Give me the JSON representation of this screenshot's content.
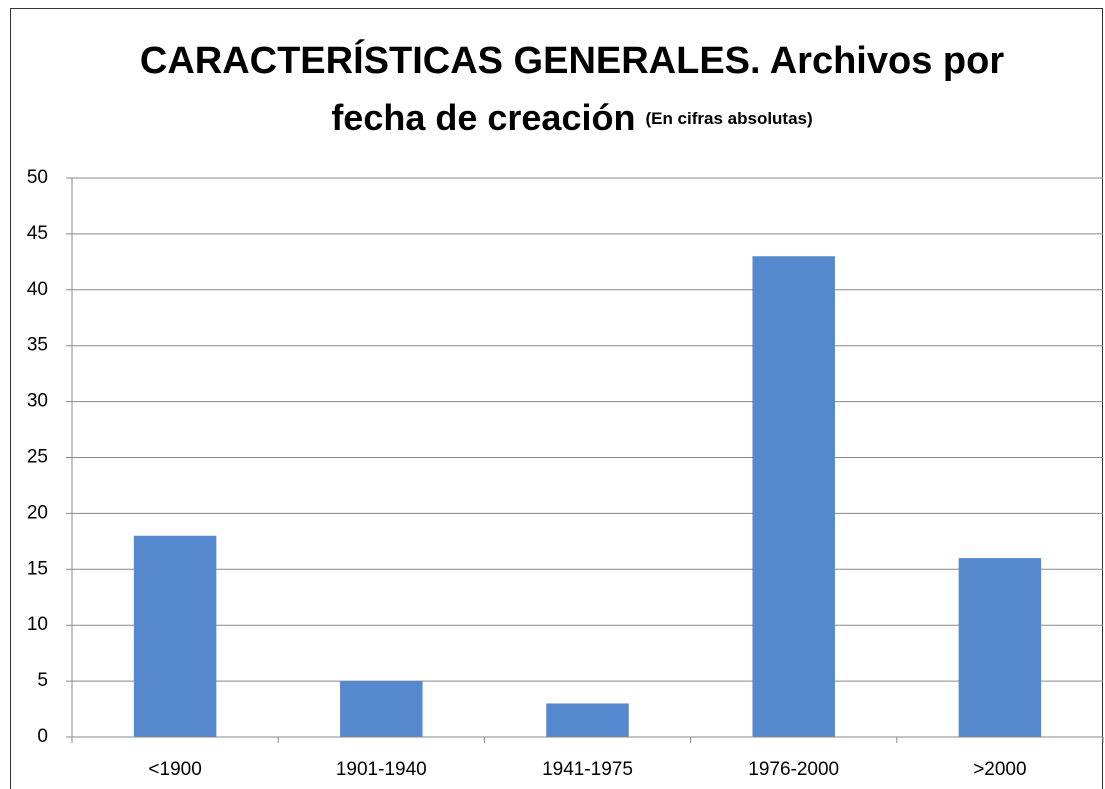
{
  "chart_data": {
    "type": "bar",
    "title": "CARACTERÍSTICAS GENERALES. Archivos por",
    "title_line2": "fecha de creación",
    "subtitle": "(En cifras absolutas)",
    "categories": [
      "<1900",
      "1901-1940",
      "1941-1975",
      "1976-2000",
      ">2000"
    ],
    "values": [
      18,
      5,
      3,
      43,
      16
    ],
    "color": "#5588cc",
    "ylim": [
      0,
      50
    ],
    "yticks": [
      0,
      5,
      10,
      15,
      20,
      25,
      30,
      35,
      40,
      45,
      50
    ],
    "grid": true
  }
}
